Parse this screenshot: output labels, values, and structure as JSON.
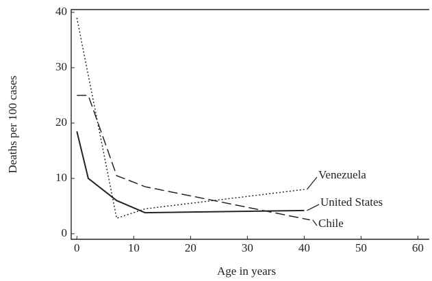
{
  "chart_data": {
    "type": "line",
    "x_label": "Age in years",
    "y_label": "Deaths per 100 cases",
    "xlim": [
      -1,
      62
    ],
    "ylim": [
      -1,
      40.5
    ],
    "xticks": [
      0,
      10,
      20,
      30,
      40,
      50,
      60
    ],
    "yticks": [
      0,
      10,
      20,
      30,
      40
    ],
    "series": [
      {
        "name": "Venezuela",
        "color": "#222",
        "dash": "dotted",
        "x": [
          0,
          7,
          12,
          40
        ],
        "values": [
          39,
          2.8,
          4.5,
          8
        ]
      },
      {
        "name": "United States",
        "color": "#222",
        "dash": "solid",
        "x": [
          0,
          2,
          7,
          12,
          40
        ],
        "values": [
          18.5,
          10,
          6,
          3.8,
          4.2
        ]
      },
      {
        "name": "Chile",
        "color": "#222",
        "dash": "dashed",
        "x": [
          0,
          2,
          7,
          12,
          41
        ],
        "values": [
          25,
          25,
          10.5,
          8.5,
          2.5
        ]
      }
    ]
  }
}
